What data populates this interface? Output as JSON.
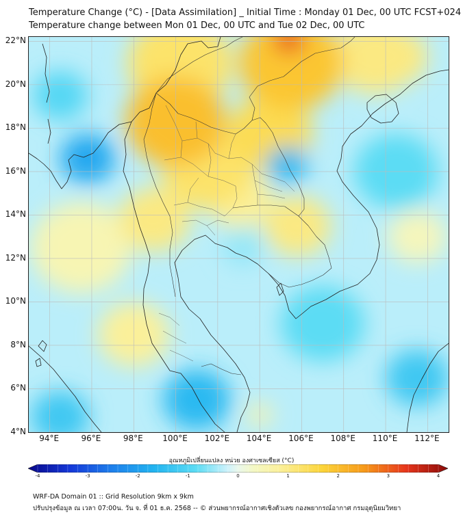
{
  "title_line1": "Temperature Change (°C) - [Data Assimilation] _ Initial Time : Monday 01 Dec, 00 UTC FCST+024",
  "title_line2": "Temperature change between Mon 01 Dec, 00 UTC and Tue 02 Dec, 00 UTC",
  "map": {
    "lon_range": [
      93,
      113
    ],
    "lat_range": [
      4,
      22.2
    ],
    "lat_labels": [
      {
        "value": 22,
        "text": "22°N"
      },
      {
        "value": 20,
        "text": "20°N"
      },
      {
        "value": 18,
        "text": "18°N"
      },
      {
        "value": 16,
        "text": "16°N"
      },
      {
        "value": 14,
        "text": "14°N"
      },
      {
        "value": 12,
        "text": "12°N"
      },
      {
        "value": 10,
        "text": "10°N"
      },
      {
        "value": 8,
        "text": "8°N"
      },
      {
        "value": 6,
        "text": "6°N"
      },
      {
        "value": 4,
        "text": "4°N"
      }
    ],
    "lon_labels": [
      {
        "value": 94,
        "text": "94°E"
      },
      {
        "value": 96,
        "text": "96°E"
      },
      {
        "value": 98,
        "text": "98°E"
      },
      {
        "value": 100,
        "text": "100°E"
      },
      {
        "value": 102,
        "text": "102°E"
      },
      {
        "value": 104,
        "text": "104°E"
      },
      {
        "value": 106,
        "text": "106°E"
      },
      {
        "value": 108,
        "text": "108°E"
      },
      {
        "value": 110,
        "text": "110°E"
      },
      {
        "value": 112,
        "text": "112°E"
      }
    ],
    "background_value": -0.3,
    "anomalies": [
      {
        "lon": 100.0,
        "lat": 18.3,
        "value": 1.9,
        "radius_deg": 2.4
      },
      {
        "lon": 101.5,
        "lat": 16.2,
        "value": 1.2,
        "radius_deg": 2.2
      },
      {
        "lon": 104.5,
        "lat": 17.8,
        "value": 1.4,
        "radius_deg": 2.0
      },
      {
        "lon": 105.5,
        "lat": 21.0,
        "value": 1.8,
        "radius_deg": 2.5
      },
      {
        "lon": 105.4,
        "lat": 22.1,
        "value": 3.2,
        "radius_deg": 0.7
      },
      {
        "lon": 100.2,
        "lat": 21.0,
        "value": 1.2,
        "radius_deg": 2.5
      },
      {
        "lon": 109.5,
        "lat": 21.3,
        "value": 1.0,
        "radius_deg": 2.0
      },
      {
        "lon": 99.0,
        "lat": 13.8,
        "value": 1.0,
        "radius_deg": 1.7
      },
      {
        "lon": 105.8,
        "lat": 13.5,
        "value": 1.0,
        "radius_deg": 1.6
      },
      {
        "lon": 103.0,
        "lat": 14.8,
        "value": 0.8,
        "radius_deg": 1.6
      },
      {
        "lon": 98.0,
        "lat": 8.5,
        "value": 0.8,
        "radius_deg": 1.7
      },
      {
        "lon": 95.5,
        "lat": 12.5,
        "value": 0.5,
        "radius_deg": 2.4
      },
      {
        "lon": 95.8,
        "lat": 16.6,
        "value": -1.8,
        "radius_deg": 1.3
      },
      {
        "lon": 105.3,
        "lat": 16.3,
        "value": -1.5,
        "radius_deg": 1.0
      },
      {
        "lon": 101.0,
        "lat": 5.5,
        "value": -1.5,
        "radius_deg": 1.6
      },
      {
        "lon": 94.5,
        "lat": 4.7,
        "value": -1.2,
        "radius_deg": 1.4
      },
      {
        "lon": 110.5,
        "lat": 16.0,
        "value": -0.8,
        "radius_deg": 2.0
      },
      {
        "lon": 111.5,
        "lat": 6.5,
        "value": -1.2,
        "radius_deg": 1.5
      },
      {
        "lon": 107.0,
        "lat": 9.0,
        "value": -0.8,
        "radius_deg": 2.0
      },
      {
        "lon": 103.2,
        "lat": 12.5,
        "value": -0.5,
        "radius_deg": 1.0
      },
      {
        "lon": 94.5,
        "lat": 19.5,
        "value": -0.9,
        "radius_deg": 1.3
      },
      {
        "lon": 111.5,
        "lat": 13.0,
        "value": 0.4,
        "radius_deg": 1.4
      },
      {
        "lon": 104.0,
        "lat": 4.8,
        "value": 0.6,
        "radius_deg": 0.6
      },
      {
        "lon": 110.5,
        "lat": 21.3,
        "value": 1.0,
        "radius_deg": 1.5
      }
    ]
  },
  "colorbar": {
    "title": "อุณหภูมิเปลี่ยนแปลง หน่วย องศาเซลเซียส (°C)",
    "vmin": -4,
    "vmax": 4,
    "ticks": [
      {
        "value": -4,
        "text": "-4"
      },
      {
        "value": -3,
        "text": "-3"
      },
      {
        "value": -2,
        "text": "-2"
      },
      {
        "value": -1,
        "text": "-1"
      },
      {
        "value": 0,
        "text": "0"
      },
      {
        "value": 1,
        "text": "1"
      },
      {
        "value": 2,
        "text": "2"
      },
      {
        "value": 3,
        "text": "3"
      },
      {
        "value": 4,
        "text": "4"
      }
    ],
    "stops": [
      {
        "value": -4,
        "color": "#08088a"
      },
      {
        "value": -3.2,
        "color": "#1538d8"
      },
      {
        "value": -2.4,
        "color": "#1e80ec"
      },
      {
        "value": -1.6,
        "color": "#22b4f0"
      },
      {
        "value": -0.8,
        "color": "#5cdcf4"
      },
      {
        "value": -0.2,
        "color": "#cdf2fb"
      },
      {
        "value": 0,
        "color": "#eaf8ec"
      },
      {
        "value": 0.3,
        "color": "#f4f8c4"
      },
      {
        "value": 0.8,
        "color": "#fbf09a"
      },
      {
        "value": 1.6,
        "color": "#fcd53a"
      },
      {
        "value": 2.4,
        "color": "#f79a1a"
      },
      {
        "value": 3.2,
        "color": "#e7361c"
      },
      {
        "value": 4,
        "color": "#8a0a08"
      }
    ]
  },
  "footer_line1": "WRF-DA Domain 01 :: Grid Resolution 9km x 9km",
  "footer_line2": "ปรับปรุงข้อมูล ณ เวลา 07:00น. วัน จ. ที่ 01 ธ.ค. 2568 -- © ส่วนพยากรณ์อากาศเชิงตัวเลข กองพยากรณ์อากาศ กรมอุตุนิยมวิทยา"
}
